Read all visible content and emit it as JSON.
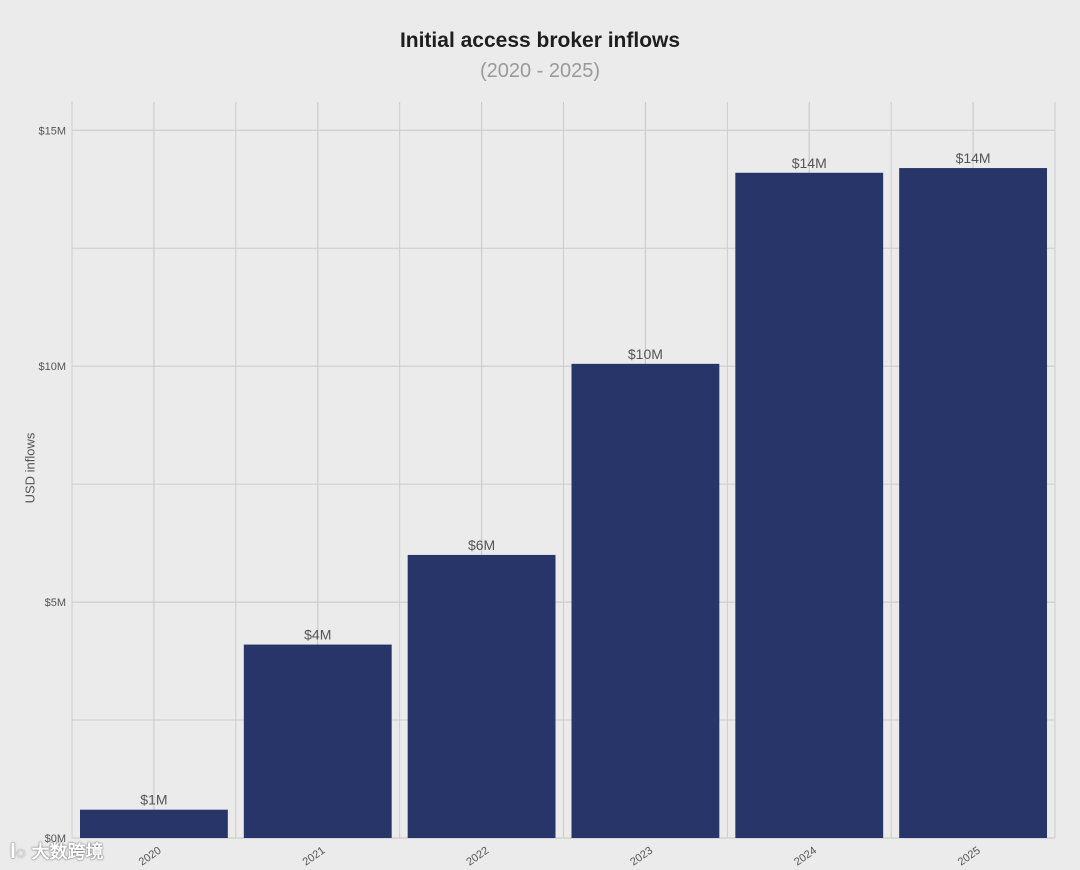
{
  "chart_data": {
    "type": "bar",
    "title": "Initial access broker inflows",
    "subtitle": "(2020 - 2025)",
    "ylabel": "USD inflows",
    "xlabel": "",
    "categories": [
      "2020",
      "2021",
      "2022",
      "2023",
      "2024",
      "2025"
    ],
    "values": [
      0.6,
      4.1,
      6.0,
      10.05,
      14.1,
      14.2
    ],
    "data_labels": [
      "$1M",
      "$4M",
      "$6M",
      "$10M",
      "$14M",
      "$14M"
    ],
    "yticks": [
      0,
      5,
      10,
      15
    ],
    "ytick_labels": [
      "$0M",
      "$5M",
      "$10M",
      "$15M"
    ],
    "ylim": [
      0,
      15.6
    ],
    "grid": true,
    "bar_color": "#283569",
    "grid_color": "#cccccc",
    "label_color": "#555555"
  },
  "watermark": {
    "text": "大数跨境"
  }
}
